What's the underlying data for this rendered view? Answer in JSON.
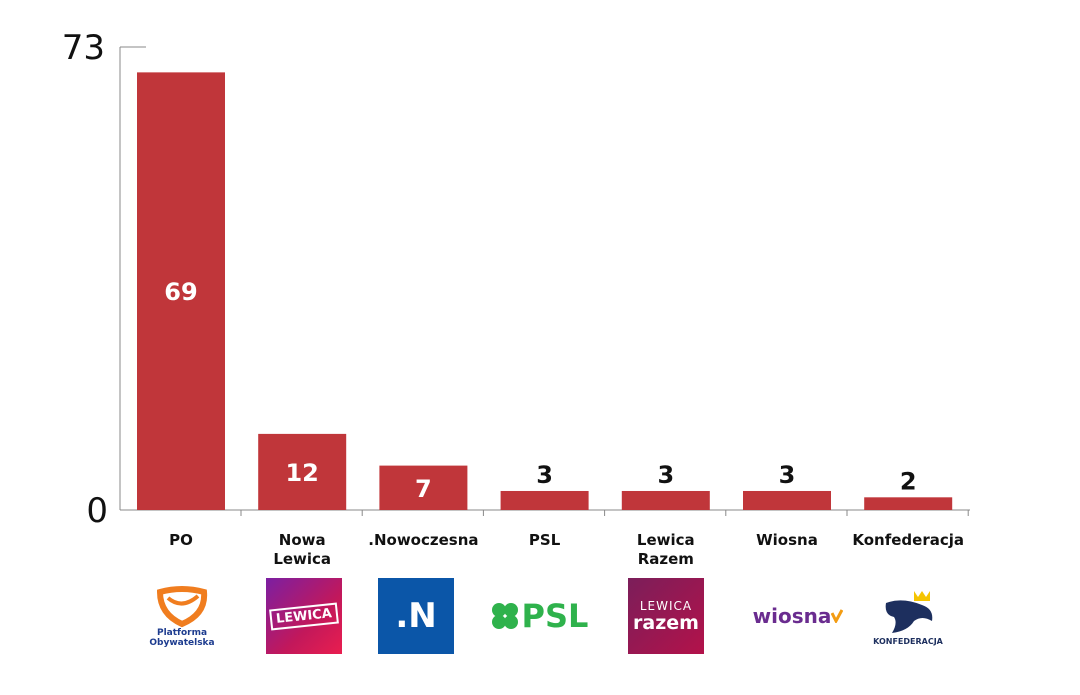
{
  "chart_data": {
    "type": "bar",
    "categories": [
      "PO",
      "Nowa Lewica",
      ".Nowoczesna",
      "PSL",
      "Lewica Razem",
      "Wiosna",
      "Konfederacja"
    ],
    "category_lines": [
      [
        "PO"
      ],
      [
        "Nowa",
        "Lewica"
      ],
      [
        ".Nowoczesna"
      ],
      [
        "PSL"
      ],
      [
        "Lewica",
        "Razem"
      ],
      [
        "Wiosna"
      ],
      [
        "Konfederacja"
      ]
    ],
    "values": [
      69,
      12,
      7,
      3,
      3,
      3,
      2
    ],
    "ylim": [
      0,
      73
    ],
    "yticks": [
      "0",
      "73"
    ],
    "title": "",
    "xlabel": "",
    "ylabel": "",
    "grid": false,
    "bar_color": "#c0363a"
  },
  "logos": {
    "po": {
      "icon": "platforma-obywatelska-logo",
      "line1": "Platforma",
      "line2": "Obywatelska"
    },
    "lewica": {
      "icon": "lewica-logo",
      "text": "LEWICA"
    },
    "nowoczesna": {
      "icon": "nowoczesna-logo",
      "text": ".N"
    },
    "psl": {
      "icon": "psl-logo",
      "text": "PSL"
    },
    "razem": {
      "icon": "lewica-razem-logo",
      "line1": "LEWICA",
      "line2": "razem"
    },
    "wiosna": {
      "icon": "wiosna-logo",
      "text": "wiosna"
    },
    "konfederacja": {
      "icon": "konfederacja-logo",
      "text": "KONFEDERACJA"
    }
  }
}
